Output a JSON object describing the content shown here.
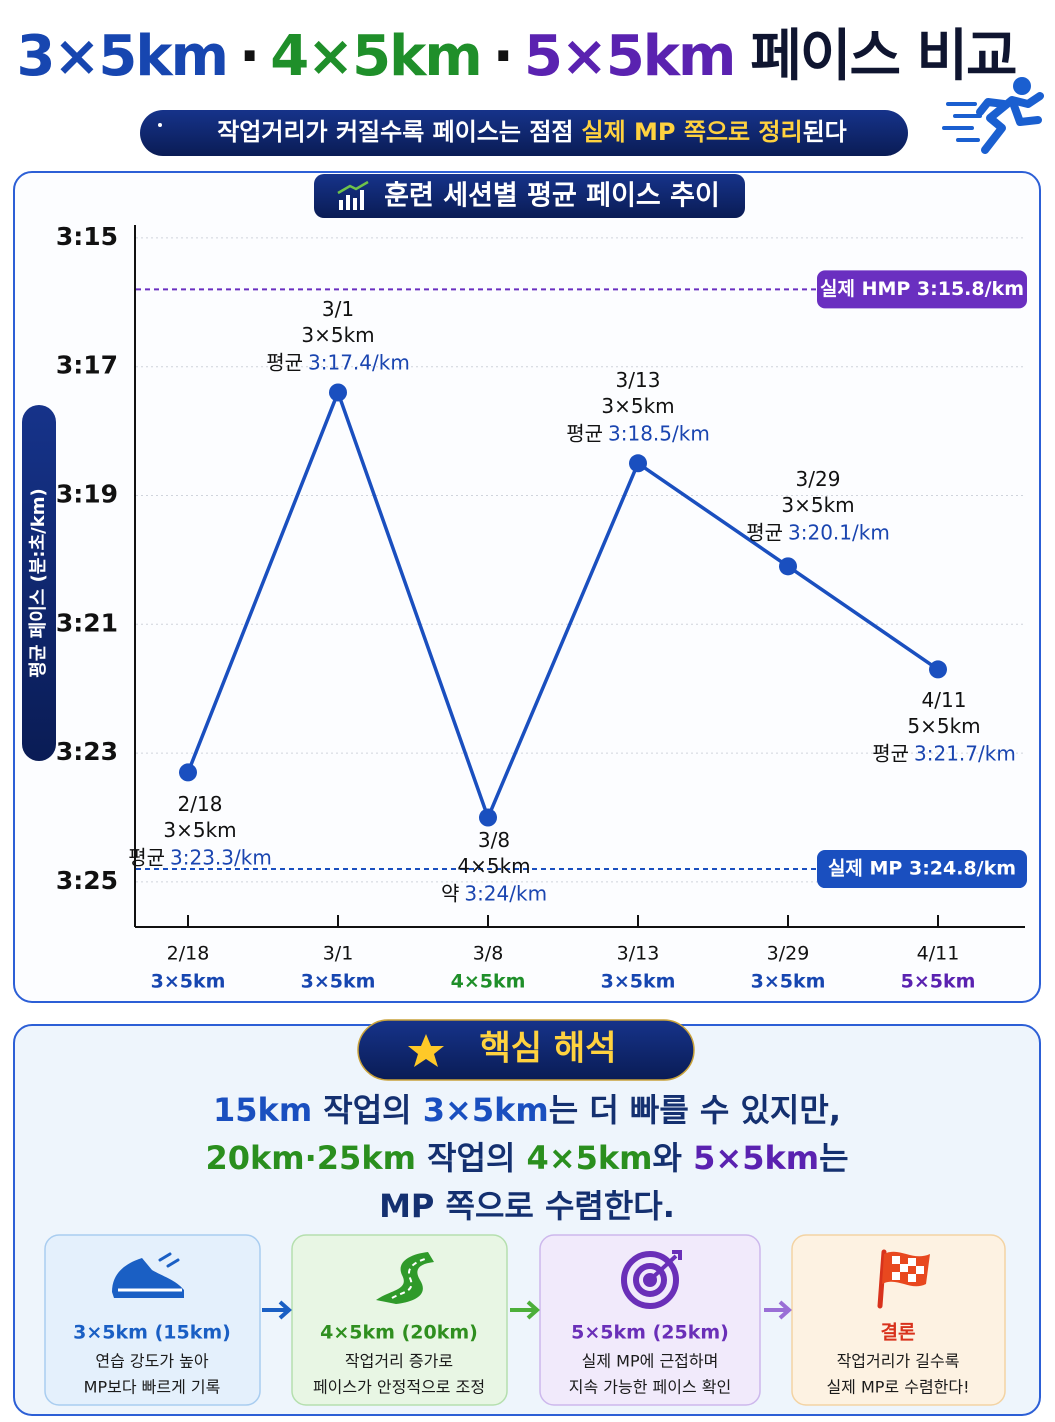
{
  "header": {
    "title_parts": [
      {
        "text": "3×5km",
        "color": "#1746b0"
      },
      {
        "text": "·",
        "color": "#111111"
      },
      {
        "text": "4×5km",
        "color": "#1f8f2a"
      },
      {
        "text": "·",
        "color": "#111111"
      },
      {
        "text": "5×5km",
        "color": "#5a22b0"
      },
      {
        "text": "페이스 비교",
        "color": "#0f1530"
      }
    ],
    "subtitle_parts": [
      {
        "text": "작업거리가 커질수록 페이스는 점점",
        "color": "#ffffff"
      },
      {
        "text": "실제 MP 쪽으로 정리",
        "color": "#ffd23f"
      },
      {
        "text": "된다",
        "color": "#ffffff"
      }
    ]
  },
  "chart_data": {
    "type": "line",
    "title": "훈련 세션별 평균 페이스 추이",
    "y_label": "평균 페이스 (분:초/km)",
    "categories": [
      "2/18",
      "3/1",
      "3/8",
      "3/13",
      "3/29",
      "4/11"
    ],
    "sessions": [
      "3×5km",
      "3×5km",
      "4×5km",
      "3×5km",
      "3×5km",
      "5×5km"
    ],
    "session_colors": [
      "#1746b0",
      "#1746b0",
      "#1f8f2a",
      "#1746b0",
      "#1746b0",
      "#5a22b0"
    ],
    "values": [
      203.3,
      197.4,
      204,
      198.5,
      200.1,
      201.7
    ],
    "value_prefixes": [
      "평균",
      "평균",
      "약",
      "평균",
      "평균",
      "평균"
    ],
    "value_labels": [
      "3:23.3/km",
      "3:17.4/km",
      "3:24/km",
      "3:18.5/km",
      "3:20.1/km",
      "3:21.7/km"
    ],
    "color": "#1a4fbf",
    "ylim": [
      194.8,
      205.7
    ],
    "y_reversed": true,
    "yticks": [
      {
        "value": 195,
        "label": "3:15"
      },
      {
        "value": 197,
        "label": "3:17"
      },
      {
        "value": 199,
        "label": "3:19"
      },
      {
        "value": 201,
        "label": "3:21"
      },
      {
        "value": 203,
        "label": "3:23"
      },
      {
        "value": 205,
        "label": "3:25"
      }
    ],
    "grid": true,
    "reference_lines": [
      {
        "value": 195.8,
        "label": "실제 HMP 3:15.8/km",
        "color": "#6a2fc0"
      },
      {
        "value": 204.8,
        "label": "실제 MP 3:24.8/km",
        "color": "#1a4fbf"
      }
    ]
  },
  "summary": {
    "title": "핵심 해석",
    "lines": [
      [
        {
          "text": "15km",
          "color": "#1a4fbf"
        },
        {
          "text": " 작업의 ",
          "color": "#143070"
        },
        {
          "text": "3×5km",
          "color": "#1a4fbf"
        },
        {
          "text": "는 더 빠를 수 있지만,",
          "color": "#143070"
        }
      ],
      [
        {
          "text": "20km·25km",
          "color": "#2a8f1e"
        },
        {
          "text": " 작업의 ",
          "color": "#143070"
        },
        {
          "text": "4×5km",
          "color": "#2a8f1e"
        },
        {
          "text": "와 ",
          "color": "#143070"
        },
        {
          "text": "5×5km",
          "color": "#5a22b0"
        },
        {
          "text": "는",
          "color": "#143070"
        }
      ],
      [
        {
          "text": "MP 쪽으로 수렴한다.",
          "color": "#143070"
        }
      ]
    ],
    "cards": [
      {
        "title": "3×5km (15km)",
        "color": "#1a5fc4",
        "lines": [
          "연습 강도가 높아",
          "MP보다 빠르게 기록"
        ]
      },
      {
        "title": "4×5km (20km)",
        "color": "#2f8f1f",
        "lines": [
          "작업거리 증가로",
          "페이스가 안정적으로 조정"
        ]
      },
      {
        "title": "5×5km (25km)",
        "color": "#6a2fb8",
        "lines": [
          "실제 MP에 근접하며",
          "지속 가능한 페이스 확인"
        ]
      },
      {
        "title": "결론",
        "color": "#d8321c",
        "lines": [
          "작업거리가 길수록",
          "실제 MP로 수렴한다!"
        ]
      }
    ]
  }
}
